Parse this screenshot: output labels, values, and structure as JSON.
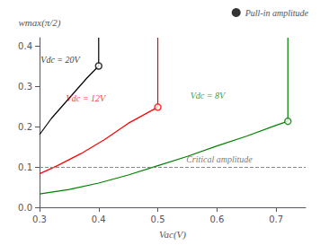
{
  "chart_data": {
    "type": "line",
    "xlabel": "Vac(V)",
    "ylabel": "wmax(π/2)",
    "xlim": [
      0.3,
      0.75
    ],
    "ylim": [
      0.0,
      0.42
    ],
    "xticks": [
      0.3,
      0.4,
      0.5,
      0.6,
      0.7
    ],
    "yticks": [
      {
        "value": 0.0,
        "label": "0.0"
      },
      0.1,
      0.2,
      0.3,
      0.4
    ],
    "grid": false,
    "legend": "upper right",
    "series": [
      {
        "color": "black",
        "x": [
          0.3,
          0.32,
          0.35,
          0.38,
          0.4
        ],
        "values": [
          0.18,
          0.22,
          0.27,
          0.32,
          0.35
        ],
        "vertical_x": [
          0.4,
          0.4
        ],
        "vertical_y": [
          0.35,
          0.42
        ]
      },
      {
        "color": "red",
        "x": [
          0.3,
          0.33,
          0.37,
          0.41,
          0.45,
          0.5
        ],
        "values": [
          0.083,
          0.103,
          0.133,
          0.168,
          0.208,
          0.248
        ],
        "vertical_x": [
          0.5,
          0.5
        ],
        "vertical_y": [
          0.248,
          0.42
        ]
      },
      {
        "color": "green",
        "x": [
          0.3,
          0.35,
          0.4,
          0.45,
          0.5,
          0.55,
          0.6,
          0.65,
          0.7,
          0.72
        ],
        "values": [
          0.033,
          0.044,
          0.06,
          0.08,
          0.103,
          0.126,
          0.152,
          0.176,
          0.203,
          0.213
        ],
        "vertical_x": [
          0.72,
          0.72
        ],
        "vertical_y": [
          0.213,
          0.42
        ]
      },
      {
        "name": "Pull-in amplitude",
        "type": "scatter",
        "marker": "circle",
        "color": "black",
        "colors": [
          "black",
          "red",
          "green"
        ],
        "x": [
          0.4,
          0.5,
          0.72
        ],
        "values": [
          0.35,
          0.248,
          0.213
        ]
      }
    ],
    "hlines": [
      {
        "y": 0.1,
        "color": "#888888",
        "line_style": "dashed"
      }
    ],
    "annotations": [
      {
        "text": "Vdc = 20V",
        "x": 0.302,
        "y": 0.355,
        "color": "black"
      },
      {
        "text": "Vdc = 12V",
        "x": 0.345,
        "y": 0.26,
        "color": "red"
      },
      {
        "text": "Vdc = 8V",
        "x": 0.555,
        "y": 0.265,
        "color": "green"
      },
      {
        "text": "Critical amplitude",
        "x": 0.548,
        "y": 0.107,
        "color": "#555555"
      }
    ]
  }
}
